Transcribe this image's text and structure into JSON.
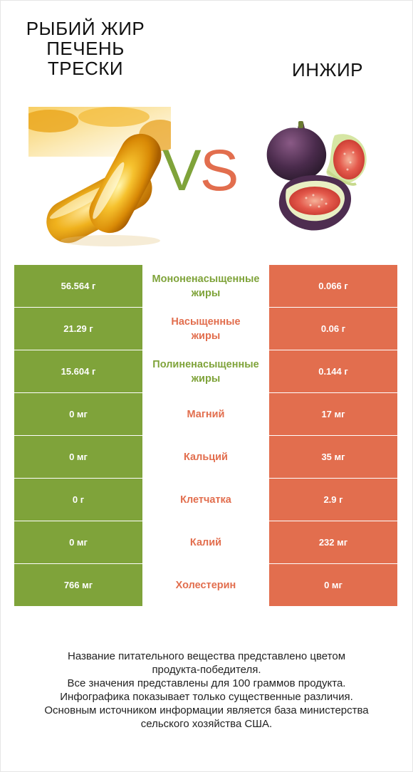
{
  "header": {
    "left_title": "РЫБИЙ ЖИР\nПЕЧЕНЬ\nТРЕСКИ",
    "right_title": "ИНЖИР",
    "vs_v": "V",
    "vs_s": "S"
  },
  "colors": {
    "left": "#7fa33a",
    "right": "#e26e4e"
  },
  "rows": [
    {
      "left": "56.564 г",
      "label": "Мононенасыщенные\nжиры",
      "right": "0.066 г",
      "winner": "left"
    },
    {
      "left": "21.29 г",
      "label": "Насыщенные\nжиры",
      "right": "0.06 г",
      "winner": "right"
    },
    {
      "left": "15.604 г",
      "label": "Полиненасыщенные\nжиры",
      "right": "0.144 г",
      "winner": "left"
    },
    {
      "left": "0 мг",
      "label": "Магний",
      "right": "17 мг",
      "winner": "right"
    },
    {
      "left": "0 мг",
      "label": "Кальций",
      "right": "35 мг",
      "winner": "right"
    },
    {
      "left": "0 г",
      "label": "Клетчатка",
      "right": "2.9 г",
      "winner": "right"
    },
    {
      "left": "0 мг",
      "label": "Калий",
      "right": "232 мг",
      "winner": "right"
    },
    {
      "left": "766 мг",
      "label": "Холестерин",
      "right": "0 мг",
      "winner": "right"
    }
  ],
  "footer": {
    "line1": "Название питательного вещества представлено цветом\nпродукта-победителя.",
    "line2": "Все значения представлены для 100 граммов продукта.",
    "line3": "Инфографика показывает только существенные различия.",
    "line4": "Основным источником информации является база министерства\nсельского хозяйства США."
  }
}
